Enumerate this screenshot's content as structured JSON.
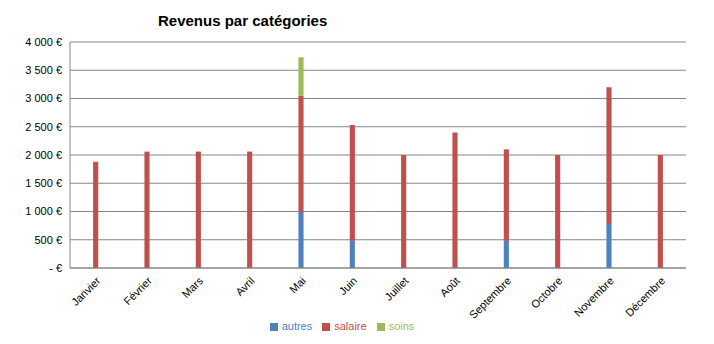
{
  "chart_data": {
    "type": "bar",
    "title": "Revenus par catégories",
    "categories": [
      "Janvier",
      "Février",
      "Mars",
      "Avril",
      "Mai",
      "Juin",
      "Juillet",
      "Août",
      "Septembre",
      "Octobre",
      "Novembre",
      "Décembre"
    ],
    "series": [
      {
        "name": "autres",
        "color": "#4f81bd",
        "values": [
          0,
          0,
          0,
          0,
          1000,
          480,
          0,
          0,
          480,
          0,
          780,
          0
        ]
      },
      {
        "name": "salaire",
        "color": "#c0504d",
        "values": [
          1880,
          2060,
          2060,
          2060,
          2050,
          2050,
          2000,
          2400,
          1620,
          2000,
          2420,
          2000
        ]
      },
      {
        "name": "soins",
        "color": "#9bbb59",
        "values": [
          0,
          0,
          0,
          0,
          680,
          0,
          0,
          0,
          0,
          0,
          0,
          0
        ]
      }
    ],
    "ylim": [
      0,
      4000
    ],
    "yticks": [
      {
        "value": 0,
        "label": "- €"
      },
      {
        "value": 500,
        "label": "500 €"
      },
      {
        "value": 1000,
        "label": "1 000 €"
      },
      {
        "value": 1500,
        "label": "1 500 €"
      },
      {
        "value": 2000,
        "label": "2 000 €"
      },
      {
        "value": 2500,
        "label": "2 500 €"
      },
      {
        "value": 3000,
        "label": "3 000 €"
      },
      {
        "value": 3500,
        "label": "3 500 €"
      },
      {
        "value": 4000,
        "label": "4 000 €"
      }
    ],
    "grid": true,
    "stacked": true,
    "legend": "bottom"
  }
}
